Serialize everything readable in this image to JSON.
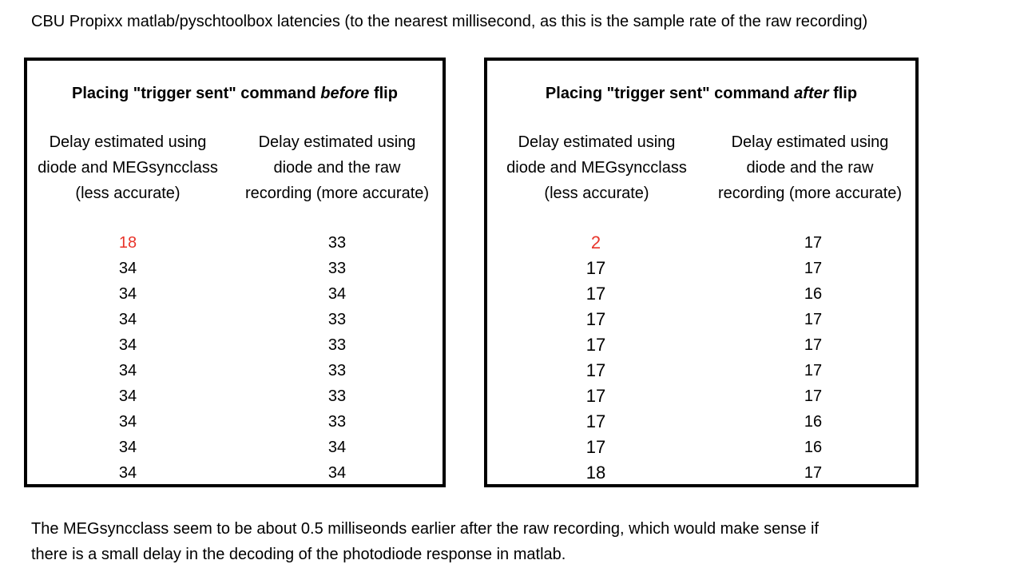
{
  "title": "CBU Propixx matlab/pyschtoolbox latencies (to the nearest millisecond, as this is the sample rate of the raw recording)",
  "left_panel": {
    "header_pre": "Placing \"trigger sent\" command ",
    "header_em": "before",
    "header_post": "  flip",
    "col1_head": [
      "Delay estimated using",
      "diode and MEGsyncclass",
      "(less accurate)"
    ],
    "col2_head": [
      "Delay estimated using",
      "diode and the raw",
      "recording (more accurate)"
    ],
    "col1_values": [
      "18",
      "34",
      "34",
      "34",
      "34",
      "34",
      "34",
      "34",
      "34",
      "34"
    ],
    "col2_values": [
      "33",
      "33",
      "34",
      "33",
      "33",
      "33",
      "33",
      "33",
      "34",
      "34"
    ]
  },
  "right_panel": {
    "header_pre": "Placing \"trigger sent\" command ",
    "header_em": "after",
    "header_post": "  flip",
    "col1_head": [
      "Delay estimated using",
      "diode and MEGsyncclass",
      "(less accurate)"
    ],
    "col2_head": [
      "Delay estimated using",
      "diode and the raw",
      "recording (more accurate)"
    ],
    "col1_values": [
      "2",
      "17",
      "17",
      "17",
      "17",
      "17",
      "17",
      "17",
      "17",
      "18"
    ],
    "col2_values": [
      "17",
      "17",
      "16",
      "17",
      "17",
      "17",
      "17",
      "16",
      "16",
      "17"
    ]
  },
  "footer": [
    "The MEGsyncclass seem to be about 0.5 milliseonds earlier after the raw recording, which would make sense if",
    "there is a small delay in the decoding of the photodiode response in matlab."
  ],
  "colors": {
    "highlight": "#e8342a",
    "border": "#000000"
  }
}
